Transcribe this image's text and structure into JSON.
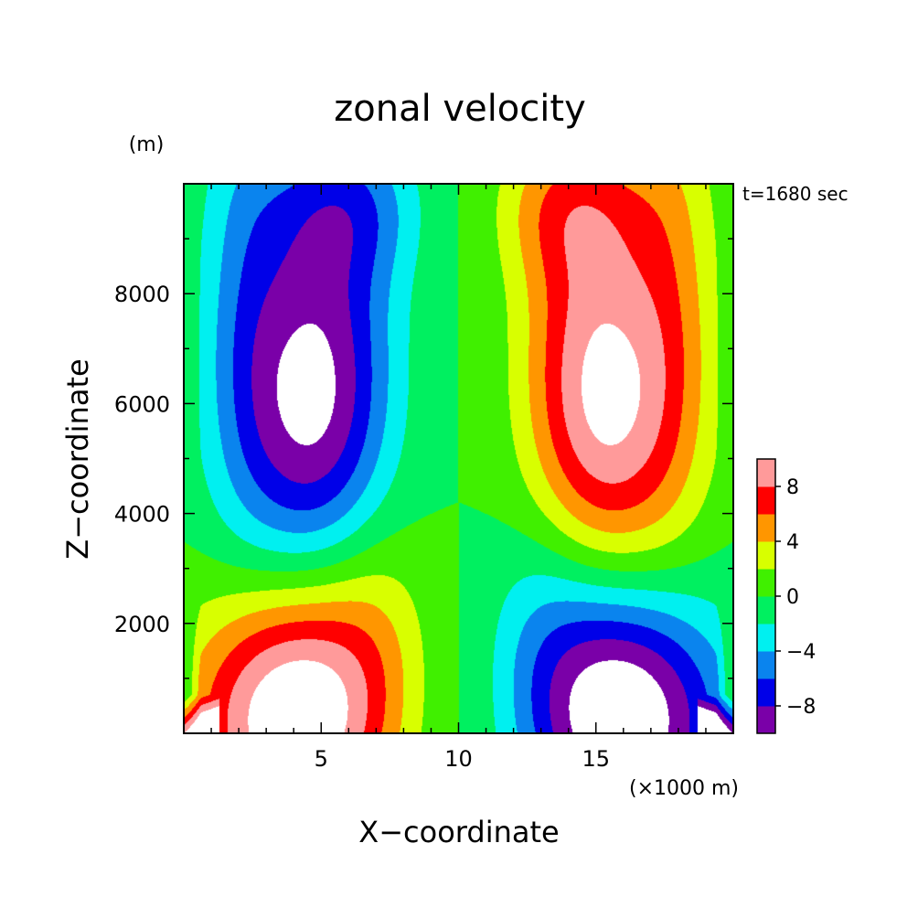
{
  "chart_data": {
    "type": "heatmap",
    "title": "zonal velocity",
    "xlabel": "X−coordinate",
    "ylabel": "Z−coordinate",
    "x_unit": "(×1000 m)",
    "y_unit": "(m)",
    "time_label": "t=1680 sec",
    "xlim": [
      0,
      20
    ],
    "ylim": [
      0,
      10000
    ],
    "x_ticks": [
      {
        "value": 5,
        "label": "5"
      },
      {
        "value": 10,
        "label": "10"
      },
      {
        "value": 15,
        "label": "15"
      }
    ],
    "y_ticks": [
      {
        "value": 2000,
        "label": "2000"
      },
      {
        "value": 4000,
        "label": "4000"
      },
      {
        "value": 6000,
        "label": "6000"
      },
      {
        "value": 8000,
        "label": "8000"
      }
    ],
    "colorbar": {
      "levels": [
        -10,
        -8,
        -6,
        -4,
        -2,
        0,
        2,
        4,
        6,
        8,
        10
      ],
      "colors": [
        "#7a00a8",
        "#0000e8",
        "#0a84ee",
        "#00f0f0",
        "#00f060",
        "#40f000",
        "#d8ff00",
        "#ff9600",
        "#ff0000",
        "#ff9a9a"
      ],
      "labels": [
        {
          "value": -8,
          "label": "−8"
        },
        {
          "value": -4,
          "label": "−4"
        },
        {
          "value": 0,
          "label": "0"
        },
        {
          "value": 4,
          "label": "4"
        },
        {
          "value": 8,
          "label": "8"
        }
      ],
      "out_of_range_color": "#ffffff"
    },
    "field_features": {
      "symmetry": "antisymmetric about x=10",
      "upper_left_minimum": {
        "x": 5,
        "z": 6200,
        "value": -11
      },
      "upper_right_maximum": {
        "x": 15,
        "z": 6200,
        "value": 11
      },
      "lower_left_maximum": {
        "x": 4.5,
        "z": 400,
        "value": 12
      },
      "lower_right_minimum": {
        "x": 15.5,
        "z": 400,
        "value": -12
      }
    }
  }
}
